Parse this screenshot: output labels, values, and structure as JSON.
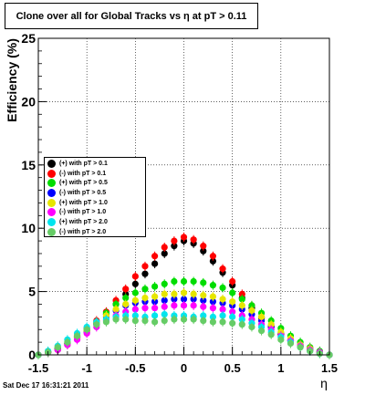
{
  "title": "Clone  over all for Global Tracks vs η at pT > 0.11",
  "footer": "Sat Dec 17 16:31:21 2011",
  "chart_data": {
    "type": "scatter",
    "title": "Clone  over all for Global Tracks vs η at pT > 0.11",
    "xlabel": "η",
    "ylabel": "Efficiency (%)",
    "xlim": [
      -1.5,
      1.5
    ],
    "ylim": [
      0,
      25
    ],
    "xticks": [
      "-1.5",
      "-1",
      "-0.5",
      "0",
      "0.5",
      "1",
      "1.5"
    ],
    "yticks": [
      "0",
      "5",
      "10",
      "15",
      "20",
      "25"
    ],
    "grid": true,
    "legend_position": "center-left",
    "x": [
      -1.5,
      -1.4,
      -1.3,
      -1.2,
      -1.1,
      -1.0,
      -0.9,
      -0.8,
      -0.7,
      -0.6,
      -0.5,
      -0.4,
      -0.3,
      -0.2,
      -0.1,
      0.0,
      0.1,
      0.2,
      0.3,
      0.4,
      0.5,
      0.6,
      0.7,
      0.8,
      0.9,
      1.0,
      1.1,
      1.2,
      1.3,
      1.4,
      1.5
    ],
    "series": [
      {
        "name": "(+) with pT > 0.1",
        "color": "#000000",
        "values": [
          0.0,
          0.2,
          0.5,
          0.9,
          1.4,
          1.9,
          2.5,
          3.2,
          4.0,
          4.8,
          5.6,
          6.4,
          7.2,
          8.0,
          8.6,
          9.0,
          8.8,
          8.2,
          7.4,
          6.5,
          5.5,
          4.5,
          3.7,
          2.9,
          2.2,
          1.6,
          1.1,
          0.7,
          0.4,
          0.2,
          0.0
        ]
      },
      {
        "name": "(-) with pT > 0.1",
        "color": "#ff0000",
        "values": [
          0.0,
          0.2,
          0.5,
          0.9,
          1.5,
          2.1,
          2.7,
          3.4,
          4.3,
          5.2,
          6.2,
          7.0,
          7.8,
          8.5,
          9.0,
          9.3,
          9.1,
          8.6,
          7.8,
          6.8,
          5.8,
          4.8,
          3.9,
          3.0,
          2.3,
          1.6,
          1.1,
          0.7,
          0.4,
          0.2,
          0.0
        ]
      },
      {
        "name": "(+) with pT > 0.5",
        "color": "#00dd00",
        "values": [
          0.0,
          0.2,
          0.5,
          0.9,
          1.4,
          2.0,
          2.6,
          3.3,
          4.0,
          4.5,
          4.9,
          5.2,
          5.4,
          5.6,
          5.8,
          5.8,
          5.8,
          5.7,
          5.5,
          5.3,
          4.9,
          4.4,
          3.9,
          3.3,
          2.7,
          2.1,
          1.5,
          1.0,
          0.6,
          0.3,
          0.0
        ]
      },
      {
        "name": "(-) with pT > 0.5",
        "color": "#0000ff",
        "values": [
          0.0,
          0.2,
          0.4,
          0.8,
          1.3,
          1.8,
          2.4,
          3.0,
          3.5,
          3.9,
          4.1,
          4.2,
          4.2,
          4.3,
          4.4,
          4.4,
          4.4,
          4.3,
          4.2,
          4.1,
          3.9,
          3.6,
          3.2,
          2.7,
          2.2,
          1.7,
          1.2,
          0.8,
          0.5,
          0.2,
          0.0
        ]
      },
      {
        "name": "(+) with pT > 1.0",
        "color": "#e6e600",
        "values": [
          0.0,
          0.2,
          0.4,
          0.8,
          1.3,
          1.9,
          2.5,
          3.1,
          3.6,
          4.0,
          4.3,
          4.5,
          4.6,
          4.8,
          4.8,
          4.9,
          4.8,
          4.7,
          4.6,
          4.4,
          4.2,
          3.9,
          3.5,
          3.0,
          2.4,
          1.8,
          1.3,
          0.8,
          0.5,
          0.2,
          0.0
        ]
      },
      {
        "name": "(-) with pT > 1.0",
        "color": "#ff00ff",
        "values": [
          0.0,
          0.2,
          0.4,
          0.8,
          1.2,
          1.7,
          2.2,
          2.7,
          3.1,
          3.4,
          3.6,
          3.7,
          3.7,
          3.8,
          3.9,
          3.9,
          3.9,
          3.8,
          3.7,
          3.6,
          3.4,
          3.1,
          2.8,
          2.4,
          2.0,
          1.5,
          1.1,
          0.7,
          0.4,
          0.2,
          0.0
        ]
      },
      {
        "name": "(+) with pT > 2.0",
        "color": "#00e5ee",
        "values": [
          0.0,
          0.3,
          0.7,
          1.2,
          1.7,
          2.2,
          2.6,
          2.8,
          3.0,
          3.1,
          3.1,
          3.0,
          3.1,
          3.2,
          3.1,
          3.1,
          3.0,
          3.1,
          3.0,
          3.1,
          3.0,
          2.8,
          2.5,
          2.2,
          1.8,
          1.4,
          1.0,
          0.6,
          0.3,
          0.1,
          0.0
        ]
      },
      {
        "name": "(-) with pT > 2.0",
        "color": "#66cc66",
        "values": [
          0.0,
          0.2,
          0.6,
          1.0,
          1.5,
          2.0,
          2.4,
          2.6,
          2.8,
          2.8,
          2.7,
          2.7,
          2.6,
          2.7,
          2.8,
          2.8,
          2.8,
          2.7,
          2.6,
          2.6,
          2.5,
          2.4,
          2.2,
          1.9,
          1.6,
          1.2,
          0.9,
          0.6,
          0.3,
          0.1,
          0.0
        ]
      }
    ]
  }
}
